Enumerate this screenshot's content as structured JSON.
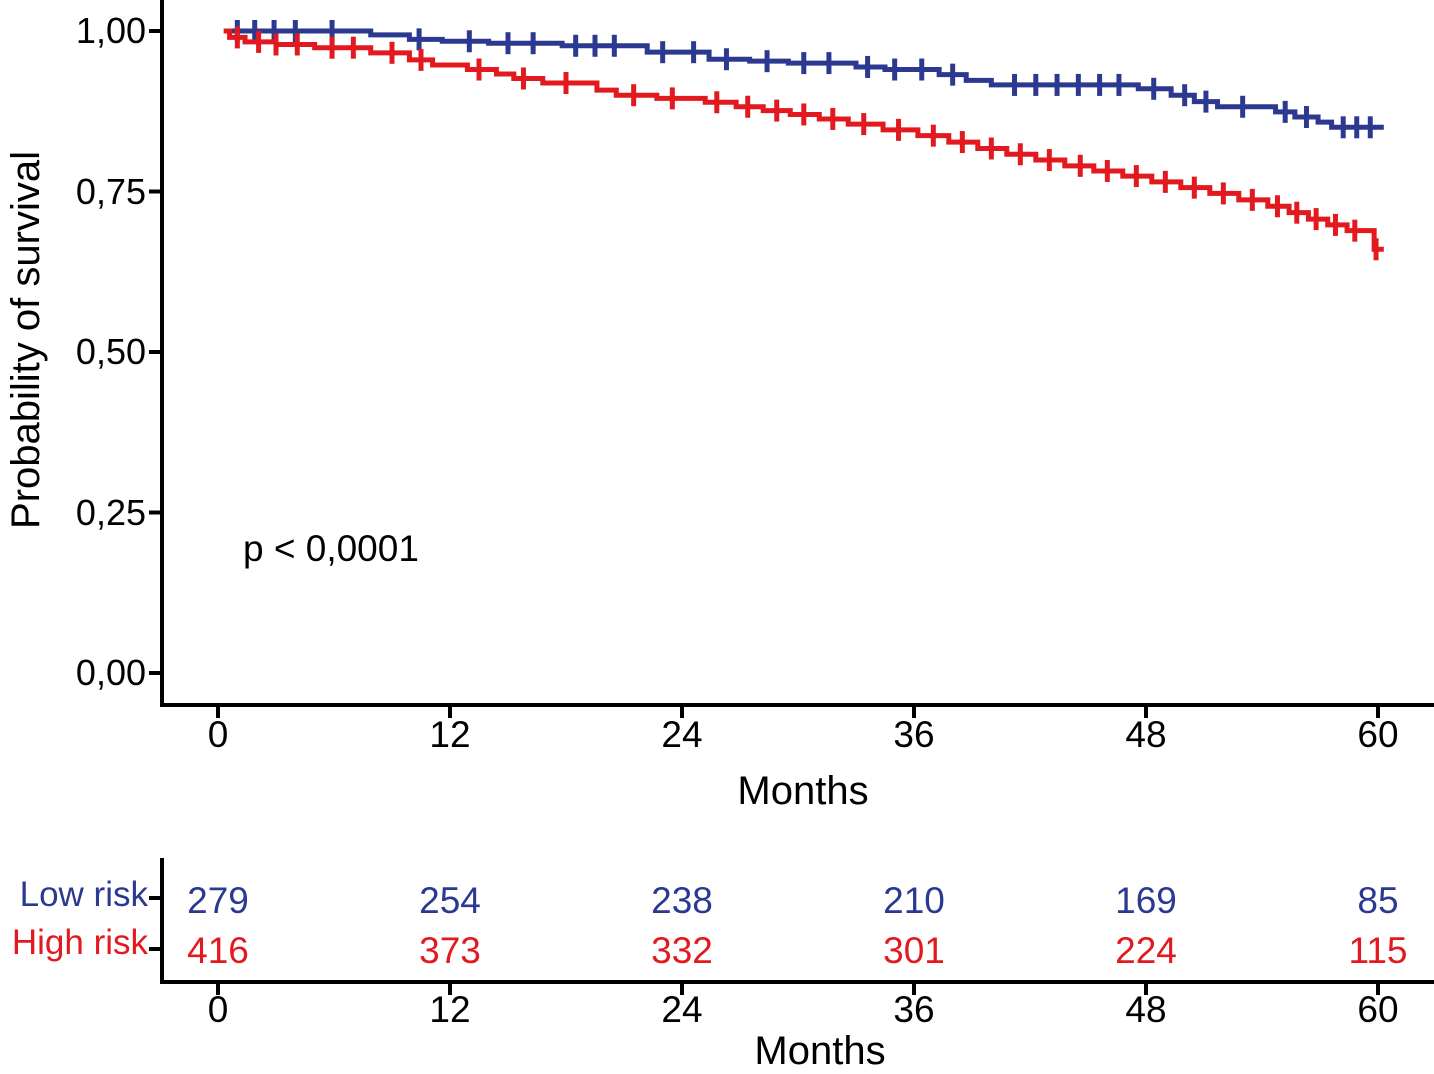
{
  "figure": {
    "background": "#ffffff",
    "y_axis": {
      "title": "Probability of survival",
      "tick_labels": [
        "1,00",
        "0,75",
        "0,50",
        "0,25",
        "0,00"
      ],
      "tick_values": [
        1.0,
        0.75,
        0.5,
        0.25,
        0.0
      ]
    },
    "x_axis": {
      "title": "Months",
      "tick_labels": [
        "0",
        "12",
        "24",
        "36",
        "48",
        "60"
      ],
      "tick_values": [
        0,
        12,
        24,
        36,
        48,
        60
      ]
    },
    "annotation": {
      "p_value": "p < 0,0001"
    },
    "colors": {
      "low_risk": "#2b3990",
      "high_risk": "#e2191f",
      "axis": "#000000"
    }
  },
  "risk_table": {
    "x_axis": {
      "title": "Months",
      "tick_labels": [
        "0",
        "12",
        "24",
        "36",
        "48",
        "60"
      ],
      "tick_values": [
        0,
        12,
        24,
        36,
        48,
        60
      ]
    },
    "rows": [
      {
        "label": "Low risk",
        "color": "#2b3990",
        "counts": [
          "279",
          "254",
          "238",
          "210",
          "169",
          "85"
        ]
      },
      {
        "label": "High risk",
        "color": "#e2191f",
        "counts": [
          "416",
          "373",
          "332",
          "301",
          "224",
          "115"
        ]
      }
    ]
  },
  "chart_data": {
    "type": "line",
    "subtype": "kaplan-meier-step",
    "title": "",
    "xlabel": "Months",
    "ylabel": "Probability of survival",
    "xlim": [
      0,
      62
    ],
    "ylim": [
      0.0,
      1.04
    ],
    "x_ticks": [
      0,
      12,
      24,
      36,
      48,
      60
    ],
    "y_ticks": [
      0.0,
      0.25,
      0.5,
      0.75,
      1.0
    ],
    "grid": false,
    "legend_position": "none",
    "annotations": [
      {
        "text": "p < 0,0001",
        "x_month": 3,
        "y_value": 0.21
      }
    ],
    "series": [
      {
        "name": "Low risk",
        "color": "#2b3990",
        "steps": [
          [
            0.3,
            1.0
          ],
          [
            7.9,
            0.994
          ],
          [
            9.9,
            0.987
          ],
          [
            11.6,
            0.984
          ],
          [
            14.0,
            0.981
          ],
          [
            17.8,
            0.977
          ],
          [
            22.2,
            0.967
          ],
          [
            25.4,
            0.956
          ],
          [
            27.5,
            0.953
          ],
          [
            29.5,
            0.95
          ],
          [
            33.0,
            0.944
          ],
          [
            34.5,
            0.94
          ],
          [
            37.3,
            0.932
          ],
          [
            38.7,
            0.923
          ],
          [
            40.0,
            0.916
          ],
          [
            47.6,
            0.91
          ],
          [
            49.3,
            0.9
          ],
          [
            50.5,
            0.89
          ],
          [
            51.7,
            0.882
          ],
          [
            54.7,
            0.874
          ],
          [
            55.7,
            0.866
          ],
          [
            56.9,
            0.858
          ],
          [
            57.6,
            0.85
          ],
          [
            60.3,
            0.85
          ]
        ],
        "censor_months": [
          1.0,
          1.9,
          2.9,
          4.0,
          5.9,
          10.4,
          13.0,
          15.0,
          16.3,
          18.5,
          19.5,
          20.5,
          23.0,
          24.6,
          26.3,
          28.4,
          30.3,
          31.6,
          33.6,
          35.0,
          36.4,
          38.0,
          41.2,
          42.3,
          43.4,
          44.5,
          45.6,
          46.6,
          48.4,
          50.0,
          51.1,
          53.0,
          55.2,
          56.3,
          58.2,
          58.9,
          59.6
        ]
      },
      {
        "name": "High risk",
        "color": "#e2191f",
        "steps": [
          [
            0.3,
            1.0
          ],
          [
            0.6,
            0.99
          ],
          [
            1.4,
            0.983
          ],
          [
            3.0,
            0.979
          ],
          [
            5.0,
            0.974
          ],
          [
            7.9,
            0.966
          ],
          [
            9.9,
            0.955
          ],
          [
            11.1,
            0.947
          ],
          [
            12.9,
            0.94
          ],
          [
            14.4,
            0.933
          ],
          [
            15.3,
            0.926
          ],
          [
            16.8,
            0.919
          ],
          [
            19.6,
            0.908
          ],
          [
            20.6,
            0.9
          ],
          [
            22.7,
            0.895
          ],
          [
            25.2,
            0.889
          ],
          [
            26.8,
            0.882
          ],
          [
            28.2,
            0.876
          ],
          [
            29.6,
            0.87
          ],
          [
            31.1,
            0.863
          ],
          [
            32.6,
            0.855
          ],
          [
            34.4,
            0.846
          ],
          [
            36.2,
            0.837
          ],
          [
            37.8,
            0.827
          ],
          [
            39.3,
            0.817
          ],
          [
            40.8,
            0.808
          ],
          [
            42.3,
            0.799
          ],
          [
            43.8,
            0.79
          ],
          [
            45.3,
            0.782
          ],
          [
            46.8,
            0.774
          ],
          [
            48.3,
            0.765
          ],
          [
            49.8,
            0.756
          ],
          [
            51.3,
            0.747
          ],
          [
            52.8,
            0.737
          ],
          [
            54.3,
            0.727
          ],
          [
            55.4,
            0.717
          ],
          [
            56.4,
            0.707
          ],
          [
            57.4,
            0.698
          ],
          [
            58.4,
            0.689
          ],
          [
            59.8,
            0.66
          ],
          [
            60.3,
            0.66
          ]
        ],
        "censor_months": [
          1.0,
          2.1,
          3.0,
          4.1,
          5.9,
          7.0,
          9.0,
          10.5,
          13.5,
          15.8,
          18.0,
          21.5,
          23.5,
          25.8,
          27.4,
          28.9,
          30.3,
          31.8,
          33.4,
          35.2,
          37.0,
          38.5,
          40.0,
          41.5,
          43.0,
          44.6,
          46.0,
          47.5,
          49.0,
          50.5,
          52.0,
          53.5,
          54.8,
          55.8,
          56.8,
          57.8,
          58.8,
          59.9
        ]
      }
    ],
    "number_at_risk": {
      "months": [
        0,
        12,
        24,
        36,
        48,
        60
      ],
      "low_risk": [
        279,
        254,
        238,
        210,
        169,
        85
      ],
      "high_risk": [
        416,
        373,
        332,
        301,
        224,
        115
      ]
    }
  }
}
